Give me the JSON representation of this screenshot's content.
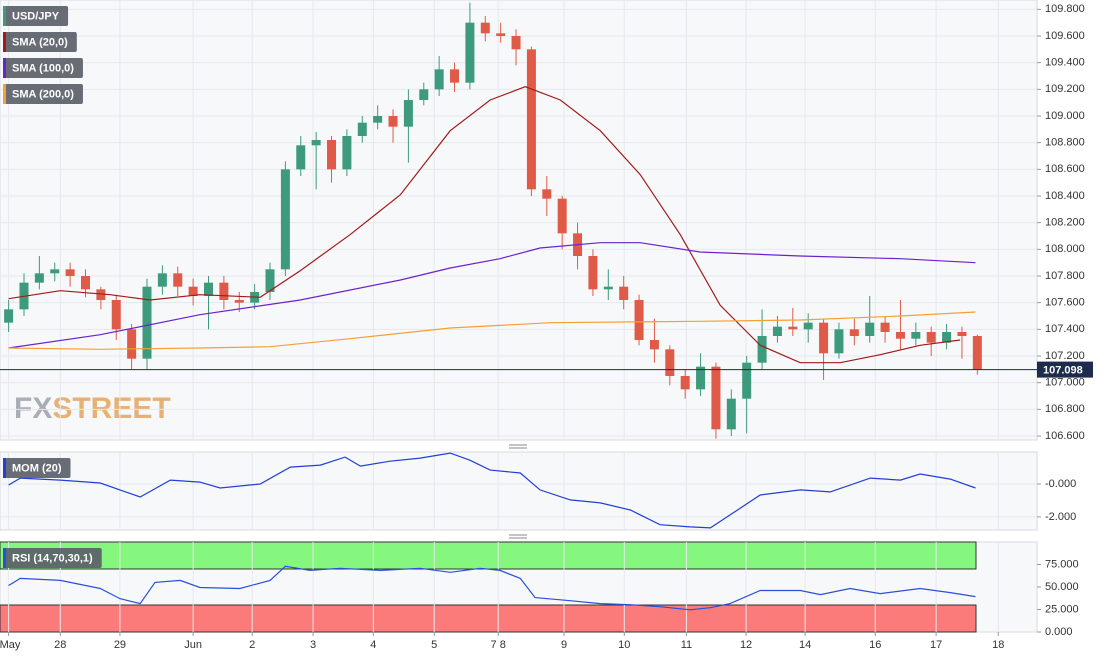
{
  "chart_data": [
    {
      "type": "candlestick",
      "name": "USD/JPY",
      "up_color": "#3d9a7c",
      "down_color": "#e05a48",
      "xlim": [
        -0.14,
        16.72
      ],
      "ylim": [
        106.57,
        109.87
      ],
      "grid": true,
      "yticks": [
        {
          "value": 106.6,
          "label": "106.600"
        },
        {
          "value": 106.8,
          "label": "106.800"
        },
        {
          "value": 107.0,
          "label": "107.000"
        },
        {
          "value": 107.2,
          "label": "107.200"
        },
        {
          "value": 107.4,
          "label": "107.400"
        },
        {
          "value": 107.6,
          "label": "107.600"
        },
        {
          "value": 107.8,
          "label": "107.800"
        },
        {
          "value": 108.0,
          "label": "108.000"
        },
        {
          "value": 108.2,
          "label": "108.200"
        },
        {
          "value": 108.4,
          "label": "108.400"
        },
        {
          "value": 108.6,
          "label": "108.600"
        },
        {
          "value": 108.8,
          "label": "108.800"
        },
        {
          "value": 109.0,
          "label": "109.000"
        },
        {
          "value": 109.2,
          "label": "109.200"
        },
        {
          "value": 109.4,
          "label": "109.400"
        },
        {
          "value": 109.6,
          "label": "109.600"
        },
        {
          "value": 109.8,
          "label": "109.800"
        }
      ],
      "last_price": 107.098,
      "watermark": "FXSTREET",
      "candles": {
        "x": [
          0,
          0.25,
          0.5,
          0.75,
          1,
          1.25,
          1.5,
          1.75,
          2,
          2.25,
          2.5,
          2.75,
          3,
          3.25,
          3.5,
          3.75,
          4,
          4.25,
          4.5,
          4.75,
          5,
          5.25,
          5.5,
          5.75,
          6,
          6.25,
          6.5,
          6.75,
          7,
          7.25,
          7.5,
          7.75,
          8,
          8.25,
          8.5,
          8.75,
          9,
          9.25,
          9.5,
          9.75,
          10,
          10.25,
          10.5,
          10.75,
          11,
          11.25,
          11.5,
          11.75,
          12,
          12.25,
          12.5,
          12.75,
          13,
          13.25,
          13.5,
          13.75,
          14,
          14.25,
          14.5,
          14.75,
          15,
          15.25,
          15.5,
          15.75
        ],
        "open": [
          107.45,
          107.55,
          107.75,
          107.82,
          107.85,
          107.8,
          107.7,
          107.62,
          107.4,
          107.18,
          107.72,
          107.82,
          107.72,
          107.65,
          107.75,
          107.62,
          107.6,
          107.68,
          107.85,
          108.6,
          108.78,
          108.82,
          108.6,
          108.85,
          108.95,
          109.0,
          108.92,
          109.12,
          109.2,
          109.35,
          109.25,
          109.7,
          109.62,
          109.6,
          109.5,
          108.45,
          108.38,
          108.12,
          107.95,
          107.7,
          107.72,
          107.62,
          107.32,
          107.25,
          107.05,
          106.95,
          107.12,
          106.65,
          106.88,
          107.15,
          107.35,
          107.42,
          107.4,
          107.45,
          107.22,
          107.4,
          107.35,
          107.45,
          107.38,
          107.33,
          107.38,
          107.3,
          107.38,
          107.35
        ],
        "high": [
          107.62,
          107.82,
          107.95,
          107.9,
          107.9,
          107.85,
          107.72,
          107.66,
          107.44,
          107.78,
          107.88,
          107.87,
          107.78,
          107.8,
          107.8,
          107.68,
          107.74,
          107.9,
          108.66,
          108.85,
          108.88,
          108.85,
          108.9,
          109.0,
          109.08,
          109.05,
          109.2,
          109.25,
          109.45,
          109.4,
          109.85,
          109.75,
          109.7,
          109.65,
          109.52,
          108.55,
          108.4,
          108.2,
          108.0,
          107.85,
          107.8,
          107.66,
          107.48,
          107.28,
          107.1,
          107.22,
          107.15,
          106.95,
          107.2,
          107.55,
          107.5,
          107.56,
          107.52,
          107.48,
          107.45,
          107.48,
          107.65,
          107.5,
          107.62,
          107.45,
          107.42,
          107.44,
          107.42,
          107.36
        ],
        "low": [
          107.38,
          107.5,
          107.7,
          107.76,
          107.72,
          107.64,
          107.55,
          107.32,
          107.1,
          107.1,
          107.66,
          107.65,
          107.58,
          107.4,
          107.55,
          107.53,
          107.55,
          107.62,
          107.8,
          108.55,
          108.45,
          108.5,
          108.55,
          108.8,
          108.9,
          108.8,
          108.65,
          109.08,
          109.15,
          109.18,
          109.2,
          109.56,
          109.55,
          109.38,
          108.4,
          108.25,
          108.0,
          107.85,
          107.65,
          107.62,
          107.55,
          107.28,
          107.15,
          106.98,
          106.88,
          106.9,
          106.58,
          106.6,
          106.62,
          107.1,
          107.3,
          107.35,
          107.3,
          107.02,
          107.18,
          107.28,
          107.3,
          107.3,
          107.25,
          107.28,
          107.2,
          107.25,
          107.18,
          107.06
        ],
        "close": [
          107.55,
          107.75,
          107.82,
          107.85,
          107.8,
          107.7,
          107.62,
          107.4,
          107.18,
          107.72,
          107.82,
          107.72,
          107.65,
          107.75,
          107.62,
          107.6,
          107.68,
          107.85,
          108.6,
          108.78,
          108.82,
          108.6,
          108.85,
          108.95,
          109.0,
          108.92,
          109.12,
          109.2,
          109.35,
          109.25,
          109.7,
          109.62,
          109.6,
          109.5,
          108.45,
          108.38,
          108.12,
          107.95,
          107.7,
          107.72,
          107.62,
          107.32,
          107.25,
          107.05,
          106.95,
          107.12,
          106.65,
          106.88,
          107.15,
          107.35,
          107.42,
          107.4,
          107.45,
          107.22,
          107.4,
          107.35,
          107.45,
          107.38,
          107.33,
          107.38,
          107.3,
          107.38,
          107.35,
          107.098
        ]
      },
      "series": [
        {
          "name": "SMA (20,0)",
          "color": "#a11b1b",
          "x": [
            0,
            0.84,
            1.65,
            2.3,
            3.11,
            4.09,
            4.74,
            5.55,
            6.37,
            7.18,
            7.83,
            8.4,
            8.97,
            9.62,
            10.27,
            10.92,
            11.57,
            12.22,
            12.87,
            13.52,
            14.17,
            14.82,
            15.47
          ],
          "values": [
            107.63,
            107.69,
            107.66,
            107.62,
            107.66,
            107.64,
            107.84,
            108.11,
            108.41,
            108.89,
            109.12,
            109.22,
            109.12,
            108.89,
            108.56,
            108.11,
            107.58,
            107.28,
            107.15,
            107.15,
            107.21,
            107.28,
            107.32
          ]
        },
        {
          "name": "SMA (100,0)",
          "color": "#6a22cc",
          "x": [
            0,
            1.49,
            3.11,
            4.74,
            6.37,
            7.18,
            7.99,
            8.64,
            9.62,
            10.27,
            11.24,
            12.87,
            14.5,
            15.72
          ],
          "values": [
            107.26,
            107.36,
            107.51,
            107.62,
            107.77,
            107.86,
            107.93,
            108.01,
            108.05,
            108.05,
            107.98,
            107.95,
            107.93,
            107.9
          ]
        },
        {
          "name": "SMA (200,0)",
          "color": "#f5a033",
          "x": [
            0,
            1.49,
            3.11,
            4.25,
            5.55,
            7.18,
            8.81,
            11.24,
            12.87,
            14.5,
            15.72
          ],
          "values": [
            107.26,
            107.25,
            107.26,
            107.27,
            107.33,
            107.41,
            107.45,
            107.46,
            107.47,
            107.5,
            107.53
          ]
        }
      ]
    },
    {
      "type": "line",
      "xlim": [
        -0.14,
        16.72
      ],
      "ylim": [
        -2.8,
        1.95
      ],
      "grid": true,
      "yticks": [
        {
          "value": 0,
          "label": "-0.000"
        },
        {
          "value": -2,
          "label": "-2.000"
        }
      ],
      "series": [
        {
          "name": "MOM (20)",
          "color": "#1f3fd6",
          "x": [
            0,
            0.19,
            0.84,
            1.49,
            1.81,
            2.14,
            2.63,
            3.11,
            3.44,
            4.09,
            4.58,
            5.07,
            5.47,
            5.72,
            6.2,
            6.69,
            7.18,
            7.5,
            7.83,
            8.32,
            8.64,
            9.13,
            9.62,
            10.11,
            10.59,
            11.08,
            11.41,
            11.73,
            12.22,
            12.87,
            13.36,
            14.01,
            14.5,
            14.82,
            15.31,
            15.72
          ],
          "values": [
            -0.06,
            0.36,
            0.24,
            0.06,
            -0.36,
            -0.79,
            0.24,
            0.12,
            -0.24,
            0,
            1.03,
            1.15,
            1.64,
            1.09,
            1.39,
            1.58,
            1.88,
            1.45,
            0.85,
            0.67,
            -0.36,
            -0.97,
            -1.15,
            -1.58,
            -2.48,
            -2.61,
            -2.67,
            -1.88,
            -0.67,
            -0.36,
            -0.48,
            0.36,
            0.24,
            0.61,
            0.3,
            -0.24
          ]
        }
      ]
    },
    {
      "type": "line",
      "xlim": [
        -0.14,
        16.72
      ],
      "ylim": [
        0,
        100
      ],
      "grid": true,
      "overbought": 70,
      "oversold": 30,
      "overbought_color": "#86f77e",
      "oversold_color": "#fb7b7b",
      "yticks": [
        {
          "value": 0,
          "label": "0.000"
        },
        {
          "value": 25,
          "label": "25.000"
        },
        {
          "value": 50,
          "label": "50.000"
        },
        {
          "value": 75,
          "label": "75.000"
        }
      ],
      "xticks": [
        {
          "value": 0,
          "label": "May"
        },
        {
          "value": 0.84,
          "label": "28"
        },
        {
          "value": 1.81,
          "label": "29"
        },
        {
          "value": 3,
          "label": "Jun"
        },
        {
          "value": 3.96,
          "label": "2"
        },
        {
          "value": 4.95,
          "label": "3"
        },
        {
          "value": 5.93,
          "label": "4"
        },
        {
          "value": 6.92,
          "label": "5"
        },
        {
          "value": 7.96,
          "label": "7 8"
        },
        {
          "value": 9.03,
          "label": "9"
        },
        {
          "value": 10.01,
          "label": "10"
        },
        {
          "value": 11.02,
          "label": "11"
        },
        {
          "value": 11.99,
          "label": "12"
        },
        {
          "value": 12.95,
          "label": "14"
        },
        {
          "value": 14.09,
          "label": "16"
        },
        {
          "value": 15.08,
          "label": "17"
        },
        {
          "value": 16.09,
          "label": "18"
        }
      ],
      "series": [
        {
          "name": "RSI (14,70,30,1)",
          "color": "#2a4fd9",
          "x": [
            0,
            0.19,
            0.84,
            1.49,
            1.81,
            2.14,
            2.38,
            2.79,
            3.11,
            3.76,
            4.25,
            4.5,
            4.9,
            5.39,
            6.04,
            6.69,
            7.18,
            7.67,
            7.99,
            8.32,
            8.56,
            9.13,
            9.62,
            10.11,
            10.59,
            11.08,
            11.41,
            11.73,
            12.22,
            12.87,
            13.2,
            13.68,
            14.17,
            14.82,
            15.31,
            15.72
          ],
          "values": [
            51.7,
            59.6,
            57.3,
            48.3,
            37.1,
            31.5,
            55.1,
            57.3,
            49.4,
            48.3,
            57.3,
            73.0,
            68.5,
            70.8,
            68.5,
            70.8,
            66.3,
            70.8,
            68.5,
            59.6,
            38.2,
            34.8,
            31.5,
            30.3,
            28.1,
            24.7,
            27.0,
            31.5,
            46.1,
            46.1,
            41.6,
            48.3,
            42.7,
            48.3,
            43.8,
            39.3
          ]
        }
      ]
    }
  ]
}
